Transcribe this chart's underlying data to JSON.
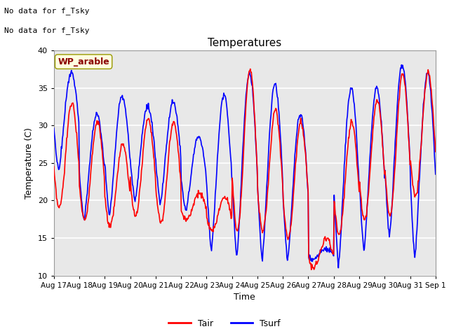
{
  "title": "Temperatures",
  "xlabel": "Time",
  "ylabel": "Temperature (C)",
  "ylim": [
    10,
    40
  ],
  "yticks": [
    10,
    15,
    20,
    25,
    30,
    35,
    40
  ],
  "plot_bg_color": "#e8e8e8",
  "fig_bg_color": "#ffffff",
  "tair_color": "red",
  "tsurf_color": "blue",
  "line_width": 1.2,
  "legend_labels": [
    "Tair",
    "Tsurf"
  ],
  "top_text_1": "No data for f_Tsky",
  "top_text_2": "No data for f_Tsky",
  "legend_label": "WP_arable",
  "legend_label_color": "#8B0000",
  "legend_label_bg": "#FFFFE0",
  "x_tick_labels": [
    "Aug 17",
    "Aug 18",
    "Aug 19",
    "Aug 20",
    "Aug 21",
    "Aug 22",
    "Aug 23",
    "Aug 24",
    "Aug 25",
    "Aug 26",
    "Aug 27",
    "Aug 28",
    "Aug 29",
    "Aug 30",
    "Aug 31",
    "Sep 1"
  ]
}
